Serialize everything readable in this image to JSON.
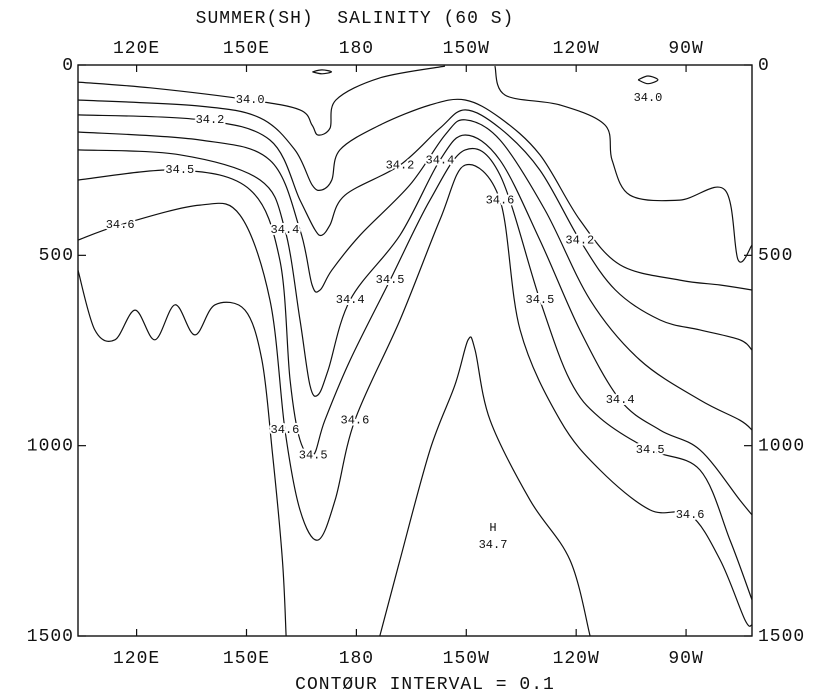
{
  "chart_data": {
    "type": "contour",
    "title": "SUMMER(SH)  SALINITY (60 S)",
    "footer": "CONTØUR INTERVAL = 0.1",
    "color": "#111111",
    "grid": false,
    "xlim": [
      104,
      288
    ],
    "xticks": [
      {
        "value": 120,
        "label": "120E"
      },
      {
        "value": 150,
        "label": "150E"
      },
      180,
      {
        "value": 210,
        "label": "150W"
      },
      {
        "value": 240,
        "label": "120W"
      },
      {
        "value": 270,
        "label": "90W"
      }
    ],
    "ylim": [
      0,
      1500
    ],
    "y_inverted": true,
    "yticks": [
      0,
      500,
      1000,
      1500
    ],
    "contours": [
      {
        "level": 34.0,
        "level_label": "34.0",
        "lines": [
          {
            "x": [
              104,
              123.7,
              151,
              164.6,
              167.9,
              169.5,
              172.8,
              174.4,
              186.4,
              204.2
            ],
            "y": [
              45,
              60,
              92,
              118,
              158,
              184,
              166,
              92,
              34,
              3
            ]
          },
          {
            "x": [
              217.8,
              220.6,
              235.6,
              247.9,
              249.8,
              254.7,
              268.3,
              280.6,
              284.2,
              288
            ],
            "y": [
              3,
              79,
              105,
              158,
              250,
              342,
              355,
              328,
              512,
              473
            ]
          },
          {
            "x": [
              256.9,
              259.6,
              262.3,
              259.6,
              256.9
            ],
            "y": [
              39,
              29,
              39,
              49,
              39
            ]
          },
          {
            "x": [
              168,
              170.6,
              173.2,
              170.6,
              168
            ],
            "y": [
              18,
              13,
              18,
              23,
              18
            ]
          }
        ]
      },
      {
        "level": 34.1,
        "lines": [
          {
            "x": [
              104,
              137.3,
              153.7,
              163.2,
              167.9,
              170.6,
              173.3,
              175.5,
              186.4,
              200.1,
              209.7,
              219.2,
              230.1,
              241,
              252,
              268.3,
              279.3,
              288
            ],
            "y": [
              92,
              108,
              139,
              223,
              315,
              328,
              302,
              223,
              158,
              105,
              92,
              139,
              236,
              407,
              525,
              565,
              578,
              591
            ]
          }
        ]
      },
      {
        "level": 34.2,
        "level_label": "34.2",
        "lines": [
          {
            "x": [
              104,
              137.3,
              156.4,
              164.6,
              168.7,
              170.6,
              172.8,
              176.9,
              191.9,
              202.8,
              209.7,
              219.2,
              230.1,
              241,
              250.7,
              262.9,
              273.8,
              284.7,
              288
            ],
            "y": [
              131,
              144,
              197,
              355,
              433,
              447,
              420,
              342,
              263,
              166,
              118,
              166,
              276,
              460,
              591,
              670,
              696,
              722,
              749
            ]
          }
        ]
      },
      {
        "level": 34.3,
        "lines": [
          {
            "x": [
              104,
              137.3,
              156.4,
              164.6,
              167.9,
              170.1,
              173.3,
              181,
              194.6,
              204.2,
              209.7,
              219.2,
              231.5,
              243.8,
              257.4,
              273.8,
              284.7,
              288
            ],
            "y": [
              176,
              197,
              250,
              433,
              578,
              591,
              539,
              447,
              315,
              184,
              144,
              197,
              381,
              617,
              775,
              880,
              933,
              959
            ]
          }
        ]
      },
      {
        "level": 34.4,
        "level_label": "34.4",
        "lines": [
          {
            "x": [
              104,
              131.8,
              153.7,
              160.5,
              164.6,
              167.3,
              169.5,
              172.3,
              178.3,
              191.9,
              202.8,
              209.7,
              219.2,
              230.1,
              241,
              252,
              262.9,
              273.8,
              284.7,
              288
            ],
            "y": [
              223,
              236,
              302,
              433,
              670,
              841,
              867,
              801,
              617,
              447,
              250,
              184,
              250,
              460,
              696,
              880,
              959,
              1011,
              1143,
              1182
            ]
          }
        ]
      },
      {
        "level": 34.5,
        "level_label": "34.5",
        "lines": [
          {
            "x": [
              104,
              131.8,
              151,
              159.1,
              161.9,
              164.6,
              168.2,
              171.4,
              178.3,
              189.2,
              200.1,
              209.7,
              219.2,
              230.1,
              238.3,
              246.5,
              260.2,
              273.8,
              282,
              288
            ],
            "y": [
              302,
              276,
              328,
              512,
              828,
              985,
              1025,
              933,
              775,
              565,
              355,
              223,
              289,
              617,
              828,
              927,
              1011,
              1064,
              1248,
              1405
            ]
          }
        ]
      },
      {
        "level": 34.6,
        "level_label": "34.6",
        "lines": [
          {
            "x": [
              104,
              115.5,
              137.3,
              148.2,
              156.4,
              160.5,
              164.6,
              169.5,
              174.2,
              179.6,
              191.9,
              202.8,
              209.7,
              219.2,
              224.7,
              235.6,
              246.5,
              260.2,
              271.1,
              279.3,
              286.1,
              288
            ],
            "y": [
              460,
              420,
              368,
              394,
              617,
              959,
              1169,
              1248,
              1143,
              933,
              670,
              407,
              263,
              355,
              696,
              933,
              1064,
              1169,
              1182,
              1300,
              1458,
              1471
            ]
          }
        ]
      },
      {
        "level": 34.7,
        "lines": [
          {
            "x": [
              186.4,
              191.9,
              200.1,
              206.9,
              210.5,
              212.4,
              216.5,
              227.4,
              238.3,
              243.8
            ],
            "y": [
              1500,
              1300,
              1011,
              841,
              722,
              749,
              933,
              1143,
              1300,
              1500
            ]
          },
          {
            "x": [
              104,
              108.6,
              114.1,
              119.6,
              125,
              130.5,
              135.9,
              141.4,
              149.6,
              154.2,
              157,
              159.8,
              160.8
            ],
            "y": [
              539,
              696,
              722,
              644,
              722,
              630,
              709,
              630,
              644,
              775,
              1011,
              1300,
              1500
            ]
          }
        ]
      }
    ],
    "extremum": {
      "label": "H",
      "value": 34.7,
      "x": 217.3,
      "y": 1216
    }
  }
}
